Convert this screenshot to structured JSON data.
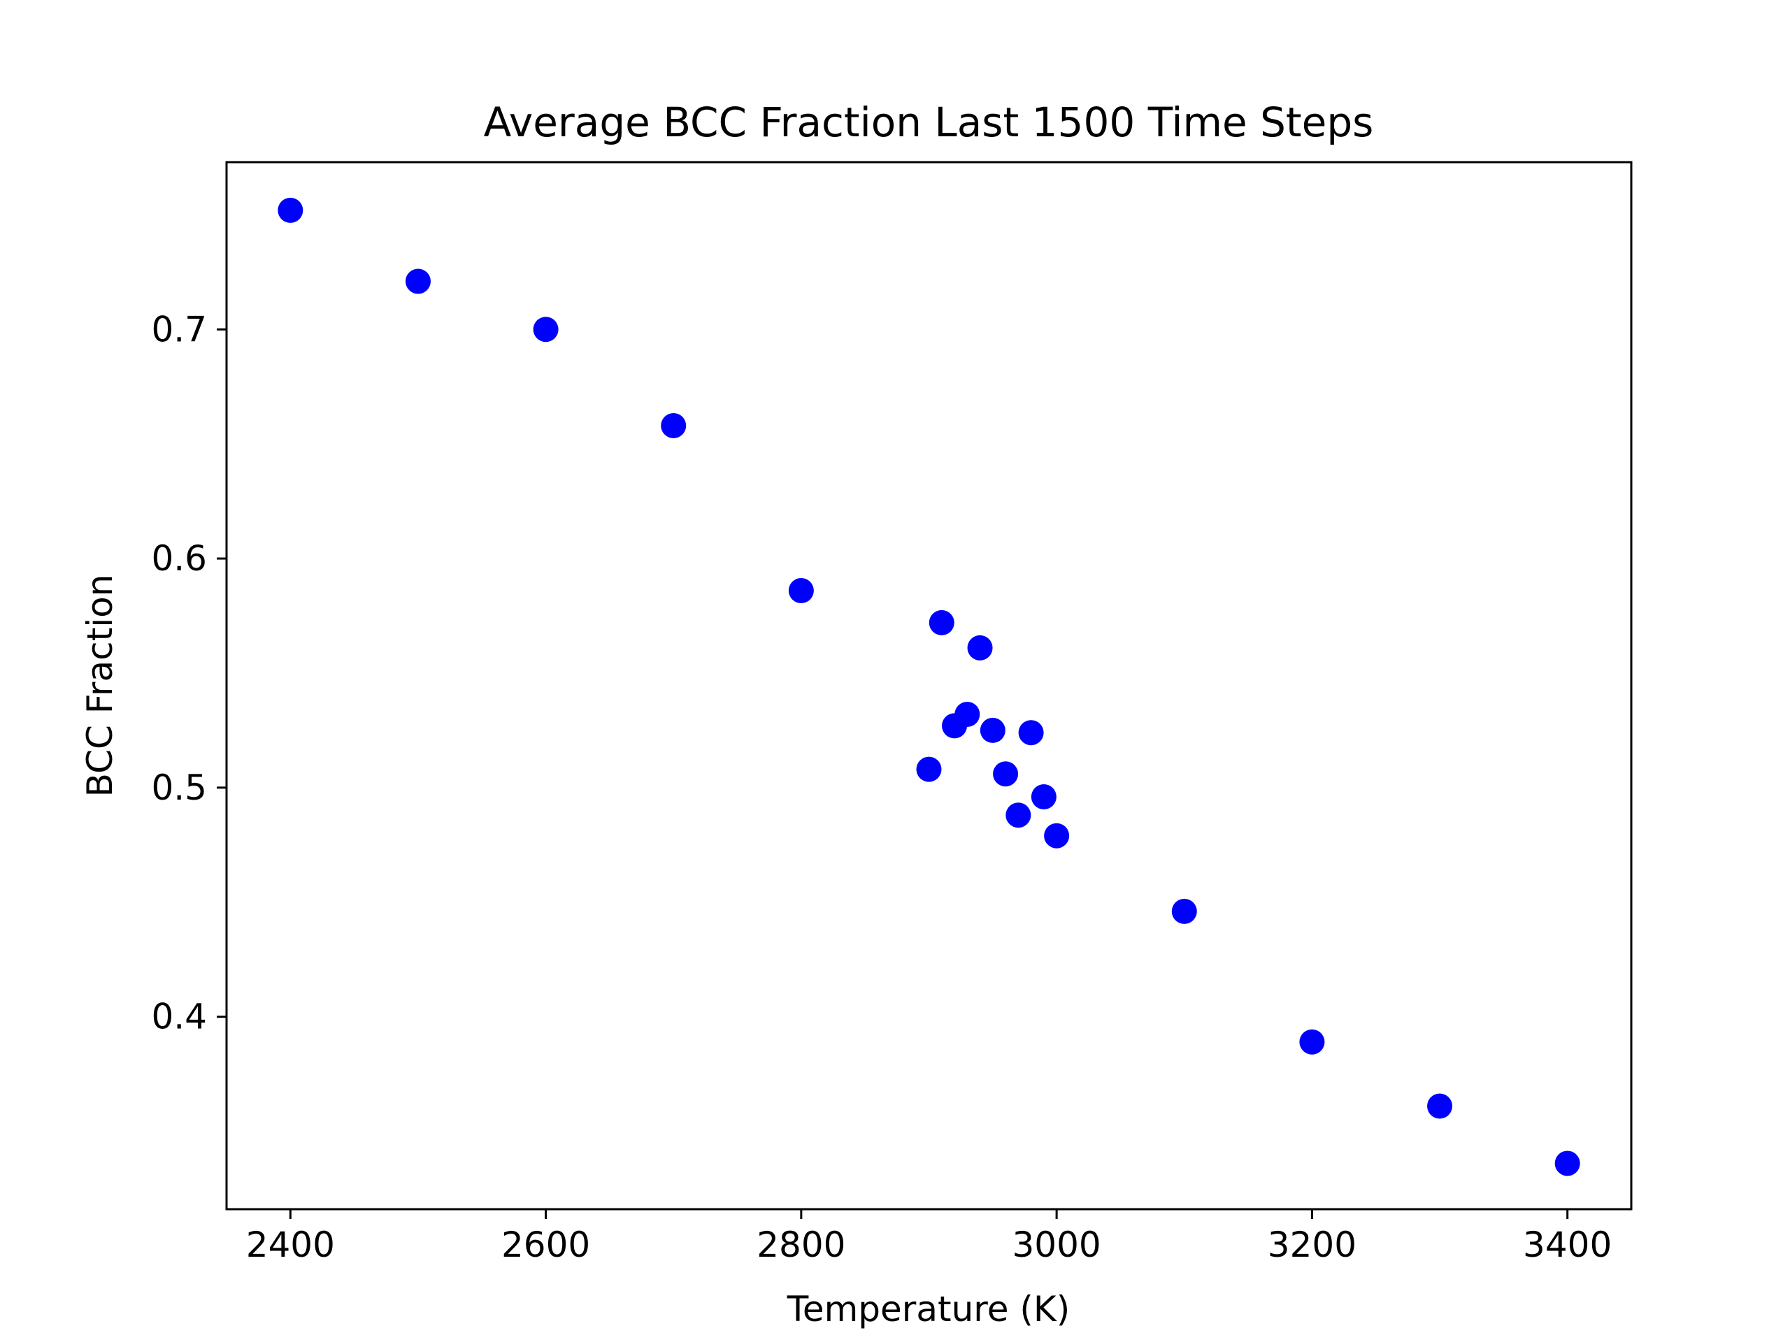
{
  "chart_data": {
    "type": "scatter",
    "title": "Average BCC Fraction Last 1500 Time Steps",
    "xlabel": "Temperature (K)",
    "ylabel": "BCC Fraction",
    "xlim": [
      2350,
      3450
    ],
    "ylim": [
      0.316,
      0.773
    ],
    "xticks": [
      2400,
      2600,
      2800,
      3000,
      3200,
      3400
    ],
    "xtick_labels": [
      "2400",
      "2600",
      "2800",
      "3000",
      "3200",
      "3400"
    ],
    "yticks": [
      0.4,
      0.5,
      0.6,
      0.7
    ],
    "ytick_labels": [
      "0.4",
      "0.5",
      "0.6",
      "0.7"
    ],
    "grid": false,
    "series": [
      {
        "color": "#0000ff",
        "x": [
          2400,
          2500,
          2600,
          2700,
          2800,
          2900,
          2910,
          2920,
          2930,
          2940,
          2950,
          2960,
          2970,
          2980,
          2990,
          3000,
          3100,
          3200,
          3300,
          3400
        ],
        "y": [
          0.752,
          0.721,
          0.7,
          0.658,
          0.586,
          0.508,
          0.572,
          0.527,
          0.532,
          0.561,
          0.525,
          0.506,
          0.488,
          0.524,
          0.496,
          0.479,
          0.446,
          0.389,
          0.361,
          0.336
        ]
      }
    ]
  }
}
